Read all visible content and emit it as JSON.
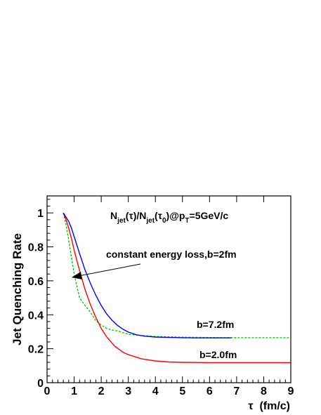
{
  "chart_data": {
    "type": "line",
    "title": "",
    "xlabel": "τ  (fm/c)",
    "ylabel": "Jet Quenching Rate",
    "xlim": [
      0,
      9
    ],
    "ylim": [
      0,
      1.1
    ],
    "xticks": [
      "0",
      "1",
      "2",
      "3",
      "4",
      "5",
      "6",
      "7",
      "8",
      "9"
    ],
    "yticks": [
      "0",
      "0.2",
      "0.4",
      "0.6",
      "0.8",
      "1"
    ],
    "grid": false,
    "legend": "none",
    "header_annotation": {
      "base": "N",
      "sub1": "jet",
      "tau_arg": "(τ)/N",
      "sub2": "jet",
      "tau0_open": "(τ",
      "tau0_sub": "0",
      "tail_open": ")@p",
      "sub3": "T",
      "tail_end": "=5GeV/c"
    },
    "arrow_annotation": "constant energy loss,b=2fm",
    "series": [
      {
        "name": "b=7.2fm",
        "color": "#0000ff",
        "style": "solid",
        "x": [
          0.6,
          0.7,
          0.8,
          0.9,
          1.0,
          1.2,
          1.4,
          1.6,
          1.8,
          2.0,
          2.2,
          2.4,
          2.6,
          2.8,
          3.0,
          3.3,
          3.6,
          4.0,
          4.4,
          5.0,
          5.5,
          6.0,
          6.5,
          6.8
        ],
        "y": [
          1.0,
          0.975,
          0.95,
          0.91,
          0.86,
          0.76,
          0.665,
          0.585,
          0.515,
          0.455,
          0.405,
          0.368,
          0.338,
          0.315,
          0.298,
          0.282,
          0.274,
          0.269,
          0.267,
          0.265,
          0.264,
          0.264,
          0.264,
          0.264
        ]
      },
      {
        "name": "b=2.0fm",
        "color": "#ff0000",
        "style": "solid",
        "x": [
          0.6,
          0.7,
          0.8,
          0.9,
          1.0,
          1.2,
          1.4,
          1.6,
          1.8,
          2.0,
          2.2,
          2.5,
          2.8,
          3.0,
          3.5,
          4.0,
          4.5,
          5.0,
          5.5,
          6.0,
          7.0,
          8.0,
          9.0
        ],
        "y": [
          1.0,
          0.96,
          0.91,
          0.85,
          0.78,
          0.66,
          0.55,
          0.46,
          0.385,
          0.32,
          0.27,
          0.215,
          0.18,
          0.165,
          0.14,
          0.128,
          0.122,
          0.12,
          0.119,
          0.118,
          0.118,
          0.118,
          0.118
        ]
      },
      {
        "name": "constant energy loss,b=2fm",
        "color": "#00cc00",
        "style": "dashed",
        "x": [
          0.6,
          0.7,
          0.8,
          0.9,
          1.0,
          1.1,
          1.2,
          1.4,
          1.6,
          1.8,
          2.0,
          2.1,
          2.2,
          2.4,
          2.6,
          2.8,
          3.0,
          3.5,
          4.0,
          5.0,
          6.0,
          7.0,
          8.0,
          9.0
        ],
        "y": [
          1.0,
          0.93,
          0.84,
          0.74,
          0.64,
          0.57,
          0.5,
          0.455,
          0.415,
          0.365,
          0.34,
          0.33,
          0.32,
          0.31,
          0.305,
          0.295,
          0.285,
          0.278,
          0.272,
          0.268,
          0.266,
          0.265,
          0.265,
          0.265
        ]
      }
    ]
  }
}
